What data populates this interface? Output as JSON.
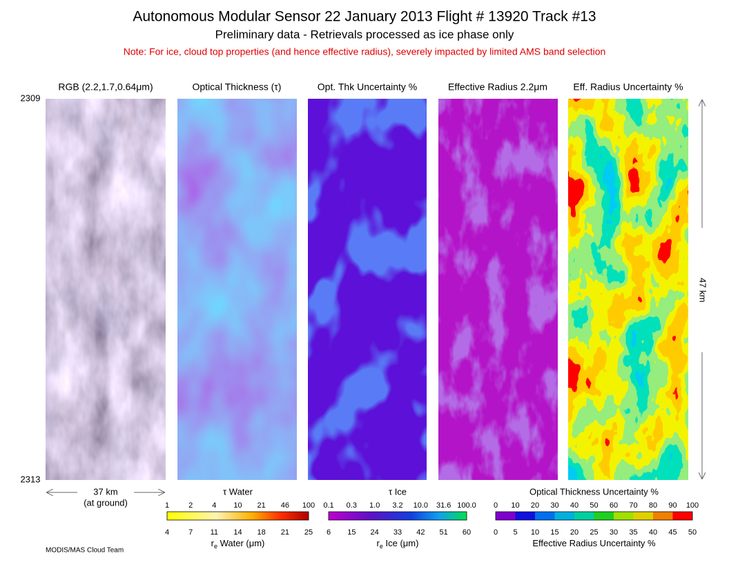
{
  "header": {
    "title": "Autonomous Modular Sensor  22 January 2013  Flight # 13920 Track #13",
    "subtitle": "Preliminary data - Retrievals processed as ice phase only",
    "note": "Note: For ice, cloud top properties (and hence effective radius), severely impacted by limited AMS band selection"
  },
  "panels": [
    {
      "label": "RGB (2.2,1.7,0.64μm)"
    },
    {
      "label": "Optical Thickness (τ)"
    },
    {
      "label": "Opt. Thk Uncertainty %"
    },
    {
      "label": "Effective Radius 2.2μm"
    },
    {
      "label": "Eff. Radius Uncertainty %"
    }
  ],
  "time_labels": {
    "start": "2309",
    "end": "2313"
  },
  "scales": {
    "across": "37 km",
    "across_note": "(at ground)",
    "along": "47 km"
  },
  "colorbars": [
    {
      "top_title": "τ Water",
      "top_ticks": [
        "1",
        "2",
        "4",
        "10",
        "21",
        "46",
        "100"
      ],
      "bottom_ticks": [
        "4",
        "7",
        "11",
        "14",
        "18",
        "21",
        "25"
      ],
      "bottom_title": {
        "symbol": "r",
        "subscript": "e",
        "text": " Water (μm)"
      }
    },
    {
      "top_title": "τ Ice",
      "top_ticks": [
        "0.1",
        "0.3",
        "1.0",
        "3.2",
        "10.0",
        "31.6",
        "100.0"
      ],
      "bottom_ticks": [
        "6",
        "15",
        "24",
        "33",
        "42",
        "51",
        "60"
      ],
      "bottom_title": {
        "symbol": "r",
        "subscript": "e",
        "text": " Ice (μm)"
      }
    },
    {
      "top_title": "Optical Thickness Uncertainty %",
      "top_ticks": [
        "0",
        "10",
        "20",
        "30",
        "40",
        "50",
        "60",
        "70",
        "80",
        "90",
        "100"
      ],
      "bottom_ticks": [
        "0",
        "5",
        "10",
        "15",
        "20",
        "25",
        "30",
        "35",
        "40",
        "45",
        "50"
      ],
      "bottom_title": {
        "symbol": "",
        "subscript": "",
        "text": "Effective Radius Uncertainty %"
      }
    }
  ],
  "footer": "MODIS/MAS Cloud Team"
}
